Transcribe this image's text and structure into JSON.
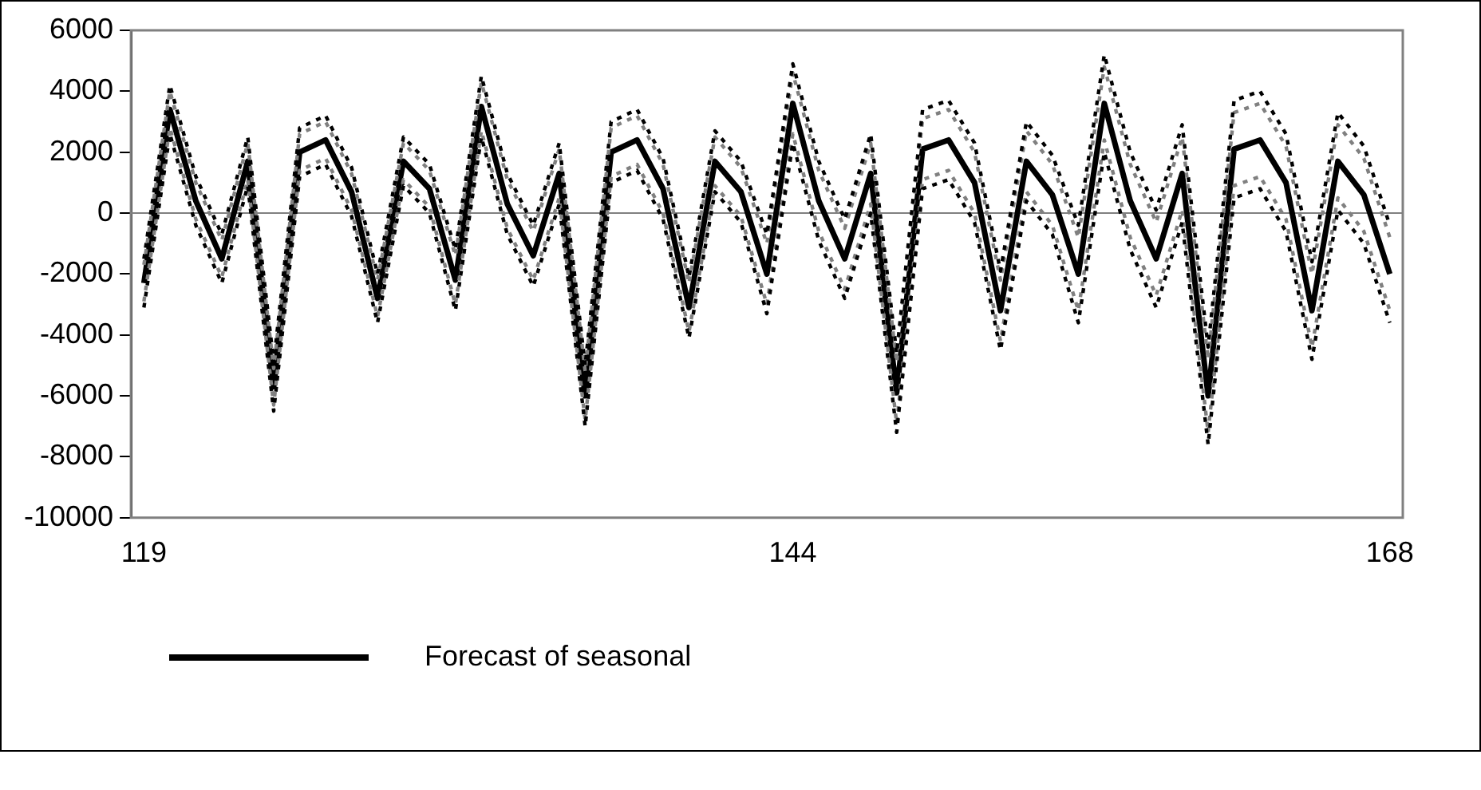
{
  "chart_data": {
    "type": "line",
    "categories": [
      "119",
      null,
      null,
      null,
      null,
      null,
      null,
      null,
      null,
      null,
      null,
      null,
      null,
      null,
      null,
      null,
      null,
      null,
      null,
      null,
      null,
      null,
      null,
      null,
      null,
      "144",
      null,
      null,
      null,
      null,
      null,
      null,
      null,
      null,
      null,
      null,
      null,
      null,
      null,
      null,
      null,
      null,
      null,
      null,
      null,
      null,
      null,
      null,
      "168"
    ],
    "series": [
      {
        "color": "#000000",
        "line_style": "dotted",
        "values": [
          -1500,
          4200,
          1200,
          -700,
          2500,
          -4900,
          2800,
          3200,
          1500,
          -2000,
          2500,
          1600,
          -1200,
          4500,
          1300,
          -400,
          2300,
          -5000,
          3000,
          3400,
          1800,
          -2100,
          2700,
          1700,
          -700,
          4900,
          1700,
          -200,
          2600,
          -4600,
          3400,
          3700,
          2300,
          -1900,
          3000,
          1900,
          -400,
          5200,
          2000,
          100,
          2900,
          -4400,
          3700,
          4000,
          2600,
          -1600,
          3300,
          2200,
          -400
        ]
      },
      {
        "color": "#000000",
        "line_style": "dotted",
        "values": [
          -3100,
          2600,
          -400,
          -2300,
          900,
          -6500,
          1200,
          1600,
          -100,
          -3600,
          900,
          0,
          -3200,
          2500,
          -700,
          -2400,
          300,
          -7000,
          1000,
          1400,
          -200,
          -4100,
          700,
          -300,
          -3300,
          2300,
          -900,
          -2800,
          0,
          -7200,
          800,
          1100,
          -300,
          -4500,
          400,
          -700,
          -3600,
          2000,
          -1200,
          -3100,
          -300,
          -7600,
          500,
          800,
          -600,
          -4800,
          100,
          -1000,
          -3600
        ]
      },
      {
        "color": "#808080",
        "line_style": "dotted",
        "values": [
          -1700,
          4000,
          1000,
          -900,
          2300,
          -5100,
          2600,
          3000,
          1300,
          -2200,
          2300,
          1400,
          -1400,
          4300,
          1100,
          -600,
          2100,
          -5200,
          2800,
          3200,
          1600,
          -2300,
          2500,
          1500,
          -1000,
          4600,
          1400,
          -500,
          2300,
          -4900,
          3100,
          3400,
          2000,
          -2200,
          2700,
          1600,
          -800,
          4800,
          1600,
          -300,
          2500,
          -4800,
          3300,
          3600,
          2200,
          -2000,
          2900,
          1800,
          -800
        ]
      },
      {
        "color": "#808080",
        "line_style": "dotted",
        "values": [
          -2900,
          2800,
          -200,
          -2100,
          1100,
          -6300,
          1400,
          1800,
          100,
          -3400,
          1100,
          200,
          -3000,
          2700,
          -500,
          -2200,
          500,
          -6800,
          1200,
          1600,
          0,
          -3900,
          900,
          -100,
          -3000,
          2600,
          -600,
          -2500,
          300,
          -6900,
          1100,
          1400,
          0,
          -4200,
          700,
          -400,
          -3200,
          2400,
          -800,
          -2700,
          100,
          -7200,
          900,
          1200,
          -200,
          -4400,
          500,
          -600,
          -3200
        ]
      },
      {
        "name": "Forecast of seasonal",
        "color": "#000000",
        "line_style": "solid",
        "values": [
          -2300,
          3400,
          400,
          -1500,
          1700,
          -5700,
          2000,
          2400,
          700,
          -2800,
          1700,
          800,
          -2200,
          3500,
          300,
          -1400,
          1300,
          -6000,
          2000,
          2400,
          800,
          -3100,
          1700,
          700,
          -2000,
          3600,
          400,
          -1500,
          1300,
          -5900,
          2100,
          2400,
          1000,
          -3200,
          1700,
          600,
          -2000,
          3600,
          400,
          -1500,
          1300,
          -6000,
          2100,
          2400,
          1000,
          -3200,
          1700,
          600,
          -2000
        ]
      }
    ],
    "ylim": [
      -10000,
      6000
    ],
    "yticks": [
      -10000,
      -8000,
      -6000,
      -4000,
      -2000,
      0,
      2000,
      4000,
      6000
    ],
    "ref_lines": [
      {
        "axis": "y",
        "value": 0,
        "color": "#808080"
      }
    ],
    "grid": false,
    "legend": "bottom",
    "marker": "none"
  }
}
